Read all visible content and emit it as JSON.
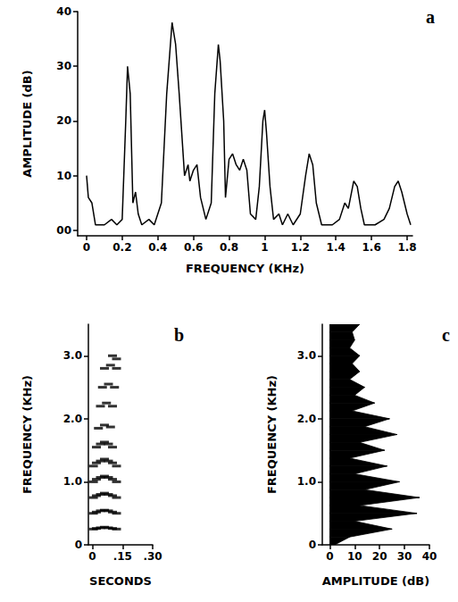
{
  "chart_data": [
    {
      "type": "line",
      "title": "a",
      "x_label": "FREQUENCY (KHz)",
      "y_label": "AMPLITUDE (dB)",
      "color": "#000000",
      "grid": false,
      "x": [
        0,
        0.01,
        0.03,
        0.05,
        0.1,
        0.14,
        0.17,
        0.2,
        0.22,
        0.23,
        0.245,
        0.26,
        0.275,
        0.29,
        0.31,
        0.35,
        0.38,
        0.42,
        0.45,
        0.48,
        0.5,
        0.52,
        0.55,
        0.57,
        0.58,
        0.6,
        0.62,
        0.64,
        0.67,
        0.7,
        0.72,
        0.74,
        0.75,
        0.77,
        0.78,
        0.8,
        0.82,
        0.84,
        0.86,
        0.88,
        0.9,
        0.92,
        0.95,
        0.97,
        0.99,
        1.0,
        1.01,
        1.03,
        1.05,
        1.08,
        1.1,
        1.13,
        1.16,
        1.2,
        1.23,
        1.25,
        1.27,
        1.29,
        1.32,
        1.38,
        1.42,
        1.45,
        1.47,
        1.5,
        1.52,
        1.54,
        1.56,
        1.62,
        1.67,
        1.7,
        1.73,
        1.75,
        1.77,
        1.8,
        1.82
      ],
      "values": [
        10,
        6,
        5,
        1,
        1,
        2,
        1,
        2,
        20,
        30,
        25,
        5,
        7,
        3,
        1,
        2,
        1,
        5,
        25,
        38,
        34,
        25,
        10,
        12,
        9,
        11,
        12,
        6,
        2,
        5,
        25,
        34,
        31,
        20,
        6,
        13,
        14,
        12,
        11,
        13,
        11,
        3,
        2,
        8,
        20,
        22,
        18,
        8,
        2,
        3,
        1,
        3,
        1,
        3,
        10,
        14,
        12,
        5,
        1,
        1,
        2,
        5,
        4,
        9,
        8,
        4,
        1,
        1,
        2,
        4,
        8,
        9,
        7,
        3,
        1
      ],
      "xlim": [
        -0.05,
        1.83
      ],
      "xticks": [
        0,
        0.2,
        0.4,
        0.6,
        0.8,
        1,
        1.2,
        1.4,
        1.6,
        1.8
      ],
      "ylim": [
        -1,
        40
      ],
      "yticks": [
        {
          "value": 0,
          "label": "00"
        },
        10,
        20,
        30,
        40
      ]
    },
    {
      "type": "scatter",
      "title": "b",
      "x_label": "SECONDS",
      "y_label": "FREQUENCY (KHz)",
      "color": "#000000",
      "marker": "dash",
      "grid": false,
      "x": [
        0.005,
        0.02,
        0.04,
        0.06,
        0.08,
        0.1,
        0.12,
        0.005,
        0.02,
        0.04,
        0.06,
        0.08,
        0.1,
        0.12,
        0.005,
        0.02,
        0.04,
        0.06,
        0.08,
        0.1,
        0.12,
        0.005,
        0.02,
        0.04,
        0.06,
        0.08,
        0.1,
        0.12,
        0.005,
        0.02,
        0.04,
        0.06,
        0.08,
        0.1,
        0.12,
        0.02,
        0.04,
        0.06,
        0.08,
        0.1,
        0.03,
        0.06,
        0.09,
        0.04,
        0.07,
        0.1,
        0.05,
        0.08,
        0.11,
        0.06,
        0.09,
        0.12,
        0.1,
        0.12
      ],
      "values": [
        0.25,
        0.26,
        0.27,
        0.28,
        0.27,
        0.26,
        0.25,
        0.5,
        0.52,
        0.54,
        0.55,
        0.54,
        0.52,
        0.5,
        0.75,
        0.78,
        0.8,
        0.82,
        0.8,
        0.78,
        0.75,
        1.0,
        1.04,
        1.07,
        1.09,
        1.07,
        1.04,
        1.0,
        1.25,
        1.3,
        1.33,
        1.36,
        1.33,
        1.3,
        1.25,
        1.55,
        1.6,
        1.63,
        1.6,
        1.55,
        1.85,
        1.9,
        1.87,
        2.2,
        2.25,
        2.2,
        2.5,
        2.55,
        2.5,
        2.8,
        2.85,
        2.8,
        3.0,
        2.95
      ],
      "xlim": [
        -0.02,
        0.3
      ],
      "xticks": [
        0,
        {
          "value": 0.15,
          "label": ".15"
        },
        {
          "value": 0.3,
          "label": ".30"
        }
      ],
      "ylim": [
        0,
        3.5
      ],
      "yticks": [
        0,
        {
          "value": 1,
          "label": "1.0"
        },
        {
          "value": 2,
          "label": "2.0"
        },
        {
          "value": 3,
          "label": "3.0"
        }
      ]
    },
    {
      "type": "area",
      "orientation": "horizontal",
      "title": "c",
      "x_label": "AMPLITUDE (dB)",
      "y_label": "FREQUENCY (KHz)",
      "color": "#000000",
      "grid": false,
      "y": [
        0,
        0.125,
        0.25,
        0.375,
        0.5,
        0.625,
        0.75,
        0.875,
        1.0,
        1.125,
        1.25,
        1.375,
        1.5,
        1.625,
        1.75,
        1.875,
        2.0,
        2.125,
        2.25,
        2.375,
        2.5,
        2.625,
        2.75,
        2.875,
        3.0,
        3.125,
        3.25,
        3.375,
        3.5
      ],
      "values": [
        2,
        8,
        25,
        10,
        35,
        12,
        36,
        14,
        28,
        10,
        23,
        8,
        22,
        12,
        27,
        14,
        24,
        9,
        18,
        10,
        14,
        8,
        12,
        9,
        12,
        8,
        10,
        9,
        12
      ],
      "xlim": [
        -3,
        40
      ],
      "xticks": [
        0,
        10,
        20,
        30,
        40
      ],
      "ylim": [
        0,
        3.5
      ],
      "yticks": [
        0,
        {
          "value": 1,
          "label": "1.0"
        },
        {
          "value": 2,
          "label": "2.0"
        },
        {
          "value": 3,
          "label": "3.0"
        }
      ]
    }
  ]
}
